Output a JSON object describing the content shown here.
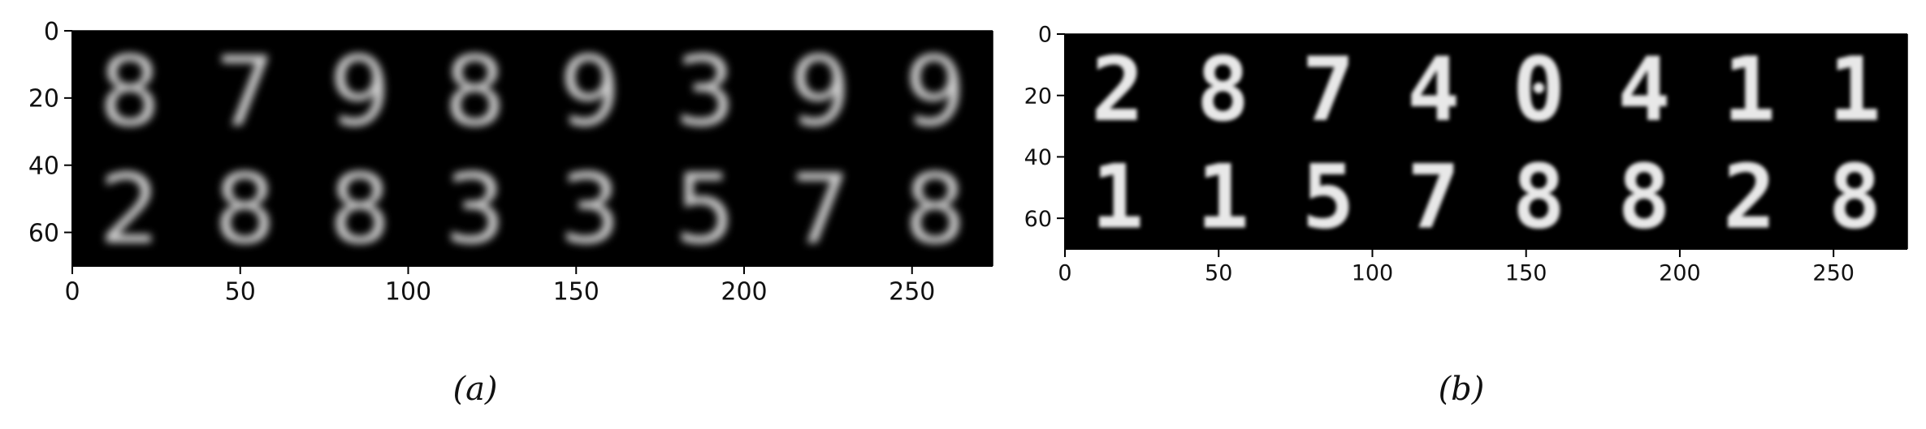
{
  "panels": [
    {
      "caption": "(a)",
      "chart_data": {
        "type": "heatmap",
        "content": "grid of 16 blurry generated handwritten digit images (2 rows x 8), white on black",
        "xlim": [
          0,
          274
        ],
        "ylim": [
          70,
          0
        ],
        "x_ticks": [
          0,
          50,
          100,
          150,
          200,
          250
        ],
        "y_ticks": [
          0,
          20,
          40,
          60
        ],
        "grid": false,
        "colormap": "gray",
        "digits_row1": [
          "8",
          "7",
          "9",
          "8",
          "9",
          "3",
          "9",
          "9"
        ],
        "digits_row2": [
          "2",
          "8",
          "8",
          "3",
          "3",
          "5",
          "7",
          "8"
        ],
        "blur": 2.6
      }
    },
    {
      "caption": "(b)",
      "chart_data": {
        "type": "heatmap",
        "content": "grid of 16 noisy generated blob images (2 rows x 8), white on black",
        "xlim": [
          0,
          274
        ],
        "ylim": [
          70,
          0
        ],
        "x_ticks": [
          0,
          50,
          100,
          150,
          200,
          250
        ],
        "y_ticks": [
          0,
          20,
          40,
          60
        ],
        "grid": false,
        "colormap": "gray",
        "digits_row1": [
          "2",
          "8",
          "7",
          "4",
          "0",
          "4",
          "1",
          "1"
        ],
        "digits_row2": [
          "1",
          "1",
          "5",
          "7",
          "8",
          "8",
          "2",
          "8"
        ],
        "blur": 1.4
      }
    }
  ]
}
